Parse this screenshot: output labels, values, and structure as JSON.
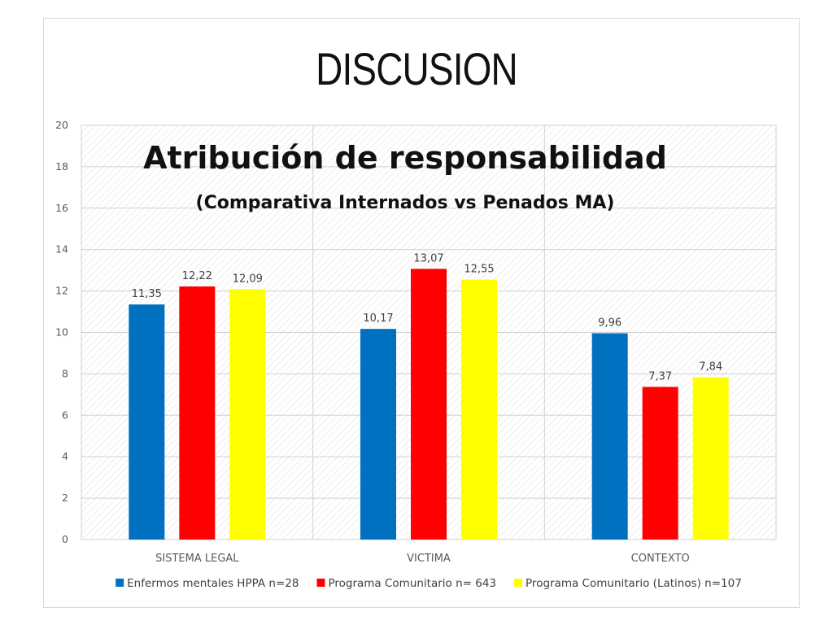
{
  "slide": {
    "title": "DISCUSION"
  },
  "chart_data": {
    "type": "bar",
    "title": "Atribución de responsabilidad",
    "subtitle": "(Comparativa Internados vs Penados MA)",
    "categories": [
      "SISTEMA LEGAL",
      "VICTIMA",
      "CONTEXTO"
    ],
    "series": [
      {
        "name": "Enfermos mentales HPPA n=28",
        "color": "#0070c0",
        "values": [
          11.35,
          10.17,
          9.96
        ],
        "labels": [
          "11,35",
          "10,17",
          "9,96"
        ]
      },
      {
        "name": "Programa Comunitario n= 643",
        "color": "#ff0000",
        "values": [
          12.22,
          13.07,
          7.37
        ],
        "labels": [
          "12,22",
          "13,07",
          "7,37"
        ]
      },
      {
        "name": "Programa Comunitario (Latinos) n=107",
        "color": "#ffff00",
        "values": [
          12.09,
          12.55,
          7.84
        ],
        "labels": [
          "12,09",
          "12,55",
          "7,84"
        ]
      }
    ],
    "ylim": [
      0,
      20
    ],
    "yticks": [
      0,
      2,
      4,
      6,
      8,
      10,
      12,
      14,
      16,
      18,
      20
    ],
    "grid": true,
    "legend": "bottom"
  }
}
